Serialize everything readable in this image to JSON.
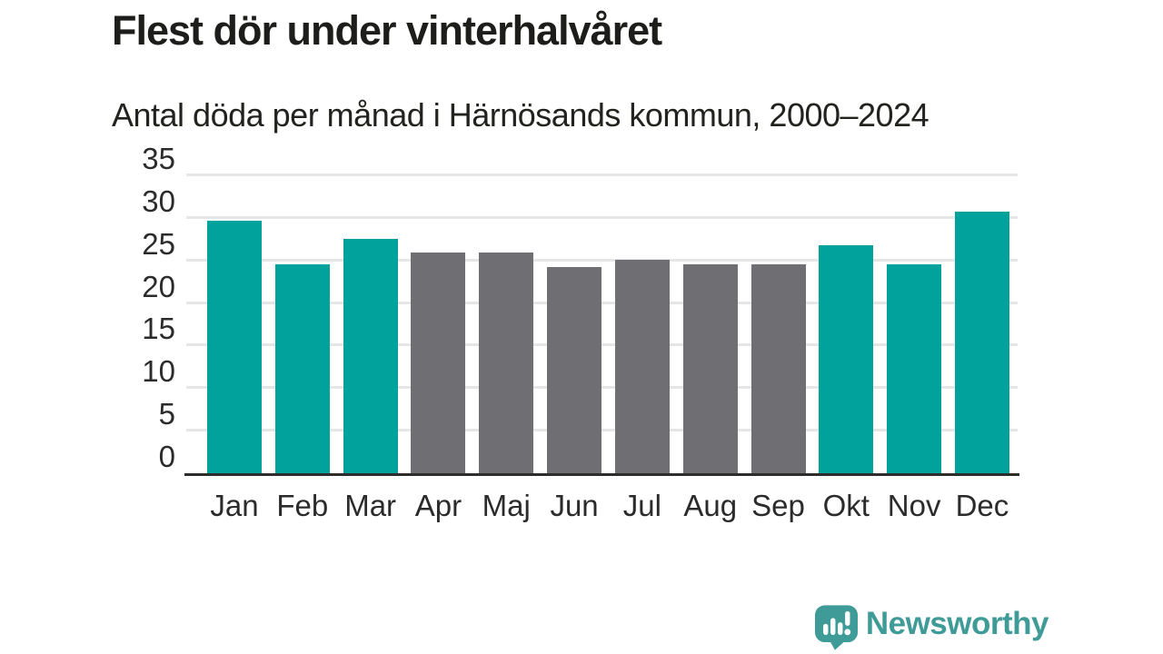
{
  "header": {
    "title": "Flest dör under vinterhalvåret",
    "subtitle": "Antal döda per månad i Härnösands kommun, 2000–2024"
  },
  "chart_data": {
    "type": "bar",
    "title": "Flest dör under vinterhalvåret",
    "subtitle": "Antal döda per månad i Härnösands kommun, 2000–2024",
    "categories": [
      "Jan",
      "Feb",
      "Mar",
      "Apr",
      "Maj",
      "Jun",
      "Jul",
      "Aug",
      "Sep",
      "Okt",
      "Nov",
      "Dec"
    ],
    "values": [
      29.7,
      24.5,
      27.5,
      25.9,
      25.9,
      24.2,
      25.1,
      24.5,
      24.6,
      26.8,
      24.6,
      30.7
    ],
    "bar_color_keys": [
      "highlight",
      "highlight",
      "highlight",
      "muted",
      "muted",
      "muted",
      "muted",
      "muted",
      "muted",
      "highlight",
      "highlight",
      "highlight"
    ],
    "xlabel": "",
    "ylabel": "",
    "ylim": [
      0,
      35
    ],
    "yticks": [
      0,
      5,
      10,
      15,
      20,
      25,
      30,
      35
    ],
    "grid": true,
    "legend": "none",
    "colors": {
      "highlight": "#00a29b",
      "muted": "#6e6e73",
      "gridline": "#e6e6e6",
      "axis": "#2d2d2b"
    }
  },
  "footer": {
    "brand": "Newsworthy",
    "brand_color": "#3f9b98",
    "logo_icon": "bar-chart-speech-bubble-icon"
  }
}
